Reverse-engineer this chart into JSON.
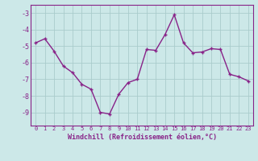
{
  "x": [
    0,
    1,
    2,
    3,
    4,
    5,
    6,
    7,
    8,
    9,
    10,
    11,
    12,
    13,
    14,
    15,
    16,
    17,
    18,
    19,
    20,
    21,
    22,
    23
  ],
  "y": [
    -4.8,
    -4.55,
    -5.3,
    -6.2,
    -6.6,
    -7.3,
    -7.6,
    -9.0,
    -9.1,
    -7.9,
    -7.2,
    -7.0,
    -5.2,
    -5.25,
    -4.3,
    -3.1,
    -4.8,
    -5.4,
    -5.35,
    -5.15,
    -5.2,
    -6.7,
    -6.85,
    -7.1
  ],
  "line_color": "#882288",
  "marker": "+",
  "marker_size": 3,
  "marker_linewidth": 1.0,
  "bg_color": "#cce8e8",
  "grid_color": "#aacccc",
  "axis_color": "#882288",
  "tick_color": "#882288",
  "xlabel": "Windchill (Refroidissement éolien,°C)",
  "xlabel_fontsize": 6.0,
  "ylim": [
    -9.8,
    -2.5
  ],
  "yticks": [
    -9,
    -8,
    -7,
    -6,
    -5,
    -4,
    -3
  ],
  "ytick_fontsize": 6.0,
  "xtick_fontsize": 5.0,
  "linewidth": 1.0
}
